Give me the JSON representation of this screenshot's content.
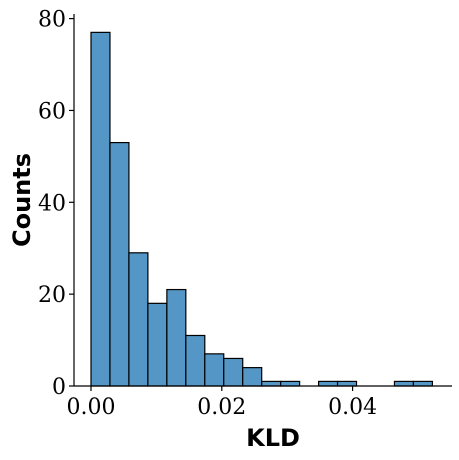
{
  "chart_data": {
    "type": "bar",
    "subtype": "histogram",
    "xlabel": "KLD",
    "ylabel": "Counts",
    "bar_color": "#5497c6",
    "edge_color": "#000000",
    "bin_edges": [
      0.0,
      0.0029,
      0.0058,
      0.0087,
      0.0116,
      0.0145,
      0.0174,
      0.0203,
      0.0232,
      0.0261,
      0.029,
      0.0319,
      0.0348,
      0.0377,
      0.0406,
      0.0435,
      0.0464,
      0.0493,
      0.0522
    ],
    "values": [
      77,
      53,
      29,
      18,
      21,
      11,
      7,
      6,
      4,
      1,
      1,
      0,
      1,
      1,
      0,
      0,
      1,
      1
    ],
    "xlim": [
      -0.0026,
      0.0552
    ],
    "ylim": [
      0,
      81
    ],
    "xticks": [
      0.0,
      0.02,
      0.04
    ],
    "xtick_labels": [
      "0.00",
      "0.02",
      "0.04"
    ],
    "yticks": [
      0,
      20,
      40,
      60,
      80
    ],
    "ytick_labels": [
      "0",
      "20",
      "40",
      "60",
      "80"
    ],
    "grid": false,
    "spines": [
      "left",
      "bottom"
    ]
  }
}
